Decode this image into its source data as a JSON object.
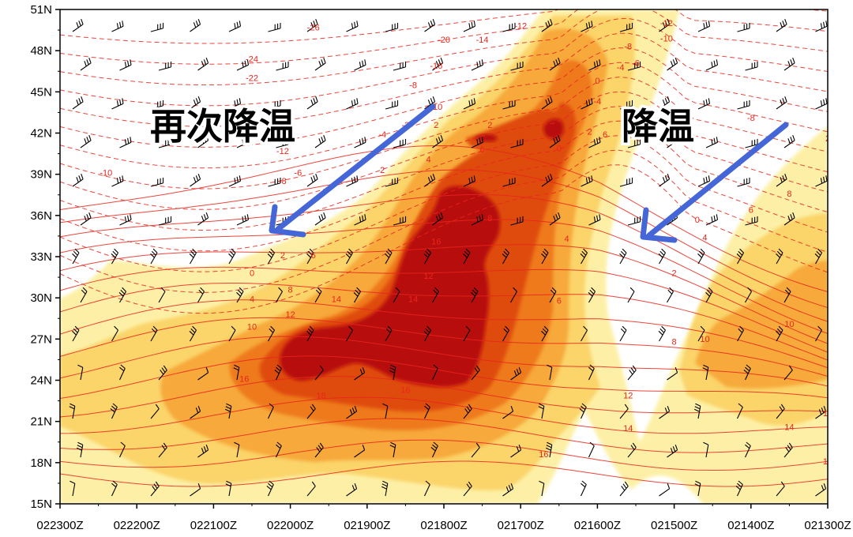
{
  "chart_data": {
    "type": "heatmap",
    "title": "",
    "xlabel": "",
    "ylabel": "",
    "x_tick_labels": [
      "022300Z",
      "022200Z",
      "022100Z",
      "022000Z",
      "021900Z",
      "021800Z",
      "021700Z",
      "021600Z",
      "021500Z",
      "021400Z",
      "021300Z"
    ],
    "y_tick_labels": [
      "15N",
      "18N",
      "21N",
      "24N",
      "27N",
      "30N",
      "33N",
      "36N",
      "39N",
      "42N",
      "45N",
      "48N",
      "51N"
    ],
    "ylim": [
      15,
      51
    ],
    "x_axis_time_order": "decreasing (time runs right-to-left)",
    "contour_labels": [
      {
        "value": "-26",
        "x": 3.3,
        "lat": 49.6
      },
      {
        "value": "-24",
        "x": 2.5,
        "lat": 47.3
      },
      {
        "value": "-22",
        "x": 2.5,
        "lat": 45.9
      },
      {
        "value": "-20",
        "x": 5.0,
        "lat": 48.7
      },
      {
        "value": "-14",
        "x": 5.5,
        "lat": 48.7
      },
      {
        "value": "-12",
        "x": 6.0,
        "lat": 49.7
      },
      {
        "value": "-16",
        "x": 4.9,
        "lat": 46.8
      },
      {
        "value": "-10",
        "x": 4.9,
        "lat": 43.8
      },
      {
        "value": "-8",
        "x": 4.6,
        "lat": 45.4
      },
      {
        "value": "-6",
        "x": 3.1,
        "lat": 39.0
      },
      {
        "value": "-12",
        "x": 2.9,
        "lat": 40.6
      },
      {
        "value": "-10",
        "x": 0.6,
        "lat": 39.0
      },
      {
        "value": "-8",
        "x": 2.9,
        "lat": 38.4
      },
      {
        "value": "-4",
        "x": 4.2,
        "lat": 41.8
      },
      {
        "value": "-2",
        "x": 4.5,
        "lat": 42.5
      },
      {
        "value": "2",
        "x": 4.2,
        "lat": 39.2
      },
      {
        "value": "2",
        "x": 4.9,
        "lat": 42.5
      },
      {
        "value": "2",
        "x": 5.6,
        "lat": 42.5
      },
      {
        "value": "4",
        "x": 4.8,
        "lat": 40.0
      },
      {
        "value": "6",
        "x": 5.5,
        "lat": 40.7
      },
      {
        "value": "2",
        "x": 2.9,
        "lat": 33.0
      },
      {
        "value": "6",
        "x": 3.3,
        "lat": 33.0
      },
      {
        "value": "0",
        "x": 2.5,
        "lat": 31.7
      },
      {
        "value": "8",
        "x": 3.0,
        "lat": 30.5
      },
      {
        "value": "4",
        "x": 2.5,
        "lat": 29.8
      },
      {
        "value": "12",
        "x": 3.0,
        "lat": 28.7
      },
      {
        "value": "14",
        "x": 3.6,
        "lat": 29.8
      },
      {
        "value": "10",
        "x": 2.5,
        "lat": 27.8
      },
      {
        "value": "14",
        "x": 4.6,
        "lat": 29.8
      },
      {
        "value": "12",
        "x": 4.8,
        "lat": 31.5
      },
      {
        "value": "16",
        "x": 4.9,
        "lat": 34.0
      },
      {
        "value": "8",
        "x": 5.6,
        "lat": 35.7
      },
      {
        "value": "16",
        "x": 2.4,
        "lat": 24.0
      },
      {
        "value": "18",
        "x": 3.4,
        "lat": 22.8
      },
      {
        "value": "16",
        "x": 4.5,
        "lat": 23.2
      },
      {
        "value": "0",
        "x": 7.0,
        "lat": 45.7
      },
      {
        "value": "-4",
        "x": 7.3,
        "lat": 46.7
      },
      {
        "value": "-6",
        "x": 7.5,
        "lat": 47.0
      },
      {
        "value": "-8",
        "x": 7.4,
        "lat": 48.2
      },
      {
        "value": "-12",
        "x": 7.9,
        "lat": 49.9
      },
      {
        "value": "-10",
        "x": 7.9,
        "lat": 48.8
      },
      {
        "value": "2",
        "x": 6.9,
        "lat": 42.0
      },
      {
        "value": "6",
        "x": 7.1,
        "lat": 41.8
      },
      {
        "value": "0",
        "x": 6.5,
        "lat": 40.8
      },
      {
        "value": "-4",
        "x": 7.0,
        "lat": 44.2
      },
      {
        "value": "4",
        "x": 6.6,
        "lat": 34.2
      },
      {
        "value": "6",
        "x": 6.5,
        "lat": 29.7
      },
      {
        "value": "2",
        "x": 8.0,
        "lat": 31.7
      },
      {
        "value": "4",
        "x": 8.4,
        "lat": 34.3
      },
      {
        "value": "0",
        "x": 8.3,
        "lat": 35.6
      },
      {
        "value": "6",
        "x": 9.0,
        "lat": 36.3
      },
      {
        "value": "8",
        "x": 9.5,
        "lat": 37.5
      },
      {
        "value": "-8",
        "x": 9.0,
        "lat": 43.0
      },
      {
        "value": "2",
        "x": 10.0,
        "lat": 41.5
      },
      {
        "value": "-6",
        "x": 10.5,
        "lat": 45.0
      },
      {
        "value": "-14",
        "x": 10.3,
        "lat": 49.7
      },
      {
        "value": "8",
        "x": 8.0,
        "lat": 26.7
      },
      {
        "value": "10",
        "x": 8.4,
        "lat": 26.9
      },
      {
        "value": "10",
        "x": 9.5,
        "lat": 28.0
      },
      {
        "value": "12",
        "x": 7.4,
        "lat": 22.8
      },
      {
        "value": "14",
        "x": 7.4,
        "lat": 20.4
      },
      {
        "value": "16",
        "x": 6.3,
        "lat": 18.5
      },
      {
        "value": "12",
        "x": 10.0,
        "lat": 21.5
      },
      {
        "value": "14",
        "x": 9.5,
        "lat": 20.5
      },
      {
        "value": "16",
        "x": 10.0,
        "lat": 18.0
      }
    ]
  },
  "annotations": {
    "left_text": "再次降温",
    "right_text": "降温"
  },
  "colors": {
    "shade_1": "#fdf0a6",
    "shade_2": "#fbd46b",
    "shade_3": "#f7a93a",
    "shade_4": "#ee7a1e",
    "shade_5": "#df4c10",
    "shade_6": "#b80f08",
    "contour_line": "#e8261c",
    "arrow": "#4466d6",
    "wind_barb": "#000000"
  }
}
